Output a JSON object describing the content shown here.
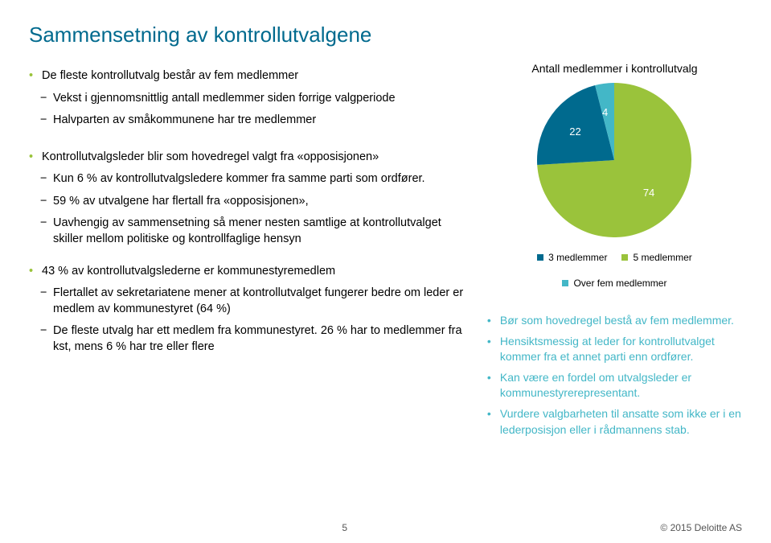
{
  "title": {
    "text": "Sammensetning av kontrollutvalgene",
    "color": "#006a8e"
  },
  "left": {
    "s1": "De fleste kontrollutvalg består av fem medlemmer",
    "s1a": "Vekst i gjennomsnittlig antall medlemmer siden forrige valgperiode",
    "s1b": "Halvparten av småkommunene har tre medlemmer",
    "s2": "Kontrollutvalgsleder blir som hovedregel valgt fra «opposisjonen»",
    "s2a": "Kun 6 % av kontrollutvalgsledere kommer fra samme parti som ordfører.",
    "s2b": "59 % av utvalgene har flertall fra «opposisjonen»,",
    "s2c": "Uavhengig av sammensetning så mener nesten samtlige at kontrollutvalget skiller mellom politiske og kontrollfaglige hensyn",
    "s3": "43 % av kontrollutvalgslederne er kommunestyremedlem",
    "s3a": "Flertallet av sekretariatene mener at kontrollutvalget fungerer bedre om leder er medlem av kommunestyret (64 %)",
    "s3b": "De fleste utvalg har ett medlem fra kommunestyret. 26 % har to medlemmer fra kst, mens 6 % har tre eller flere"
  },
  "chart": {
    "title": "Antall medlemmer i kontrollutvalg",
    "type": "pie",
    "values": [
      74,
      22,
      4
    ],
    "labels": [
      "74",
      "22",
      "4"
    ],
    "colors": [
      "#9ac33b",
      "#006a8e",
      "#43b7c7"
    ],
    "legend": [
      "3 medlemmer",
      "5 medlemmer",
      "Over fem medlemmer"
    ],
    "legend_swatch_colors": [
      "#006a8e",
      "#9ac33b",
      "#43b7c7"
    ],
    "background": "#ffffff",
    "title_fontsize": 14,
    "label_color": "#ffffff"
  },
  "recs": {
    "color": "#43b7c7",
    "items": [
      "Bør som hovedregel bestå av fem medlemmer.",
      "Hensiktsmessig at leder for kontrollutvalget kommer fra et annet parti enn ordfører.",
      "Kan være en fordel om utvalgsleder er kommunestyrerepresentant.",
      "Vurdere valgbarheten til ansatte som ikke er i en lederposisjon eller i rådmannens stab."
    ]
  },
  "footer": {
    "page": "5",
    "copyright": "© 2015 Deloitte AS"
  }
}
